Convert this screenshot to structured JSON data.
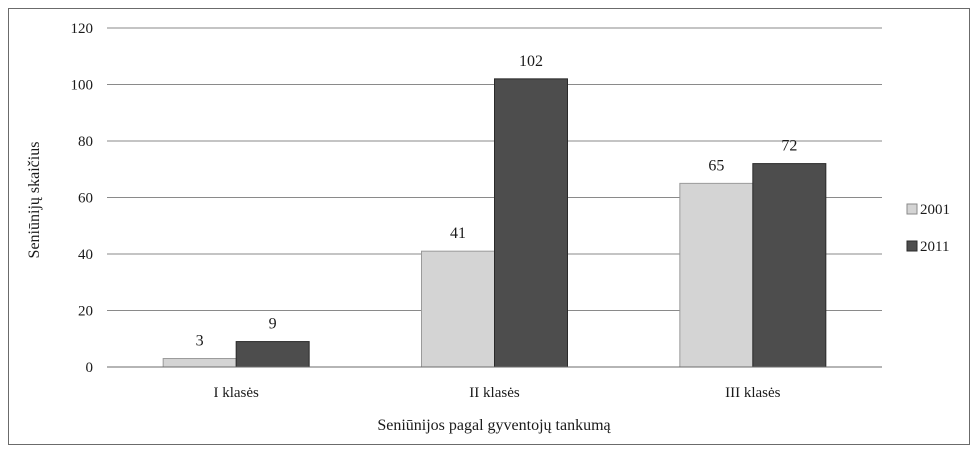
{
  "chart_data": {
    "type": "bar",
    "categories": [
      "I klasės",
      "II klasės",
      "III klasės"
    ],
    "series": [
      {
        "name": "2001",
        "values": [
          3,
          41,
          65
        ],
        "color": "#d4d4d4"
      },
      {
        "name": "2011",
        "values": [
          9,
          102,
          72
        ],
        "color": "#4d4d4d"
      }
    ],
    "data_labels": [
      [
        "3",
        "41",
        "65"
      ],
      [
        "9",
        "102",
        "72"
      ]
    ],
    "xlabel": "Seniūnijos pagal gyventojų tankumą",
    "ylabel": "Seniūnijų skaičius",
    "ylim": [
      0,
      120
    ],
    "yticks": [
      "0",
      "20",
      "40",
      "60",
      "80",
      "100",
      "120"
    ],
    "grid": true,
    "legend": "right"
  }
}
